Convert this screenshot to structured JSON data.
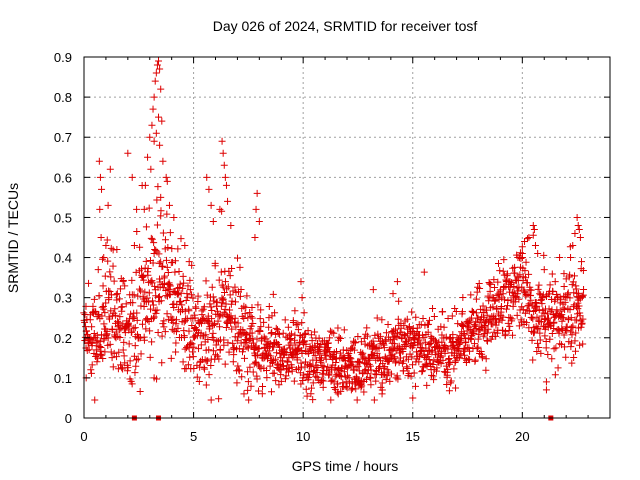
{
  "chart_data": {
    "type": "scatter",
    "title": "Day 026 of 2024, SRMTID for receiver tosf",
    "xlabel": "GPS time / hours",
    "ylabel": "SRMTID / TECUs",
    "xlim": [
      0,
      24
    ],
    "ylim": [
      0,
      0.9
    ],
    "x_ticks": [
      0,
      5,
      10,
      15,
      20
    ],
    "y_ticks": [
      0,
      0.1,
      0.2,
      0.3,
      0.4,
      0.5,
      0.6,
      0.7,
      0.8,
      0.9
    ],
    "x_tick_labels": [
      "0",
      "5",
      "10",
      "15",
      "20"
    ],
    "y_tick_labels": [
      "0",
      "0.1",
      "0.2",
      "0.3",
      "0.4",
      "0.5",
      "0.6",
      "0.7",
      "0.8",
      "0.9"
    ],
    "grid": true,
    "marker": "+",
    "color": "#dd0000",
    "baseline_markers_x": [
      2.3,
      3.4,
      21.3
    ],
    "trend": {
      "x": [
        0,
        0.5,
        1,
        1.5,
        2,
        2.5,
        3,
        3.5,
        4,
        4.5,
        5,
        5.5,
        6,
        6.5,
        7,
        7.5,
        8,
        8.5,
        9,
        9.5,
        10,
        10.5,
        11,
        11.5,
        12,
        12.5,
        13,
        13.5,
        14,
        14.5,
        15,
        15.5,
        16,
        16.5,
        17,
        17.5,
        18,
        18.5,
        19,
        19.5,
        20,
        20.5,
        21,
        21.5,
        22,
        22.5,
        22.8
      ],
      "y": [
        0.2,
        0.2,
        0.25,
        0.22,
        0.22,
        0.25,
        0.32,
        0.35,
        0.3,
        0.25,
        0.22,
        0.2,
        0.22,
        0.27,
        0.22,
        0.18,
        0.16,
        0.17,
        0.16,
        0.17,
        0.15,
        0.14,
        0.14,
        0.13,
        0.12,
        0.12,
        0.14,
        0.15,
        0.15,
        0.17,
        0.18,
        0.18,
        0.17,
        0.16,
        0.18,
        0.2,
        0.22,
        0.25,
        0.28,
        0.3,
        0.32,
        0.27,
        0.25,
        0.25,
        0.26,
        0.27,
        0.25
      ]
    },
    "spread": {
      "x": [
        0,
        1,
        2,
        3,
        4,
        5,
        6,
        7,
        8,
        9,
        10,
        11,
        12,
        13,
        14,
        15,
        16,
        17,
        18,
        19,
        20,
        21,
        22,
        22.8
      ],
      "y": [
        0.05,
        0.09,
        0.06,
        0.12,
        0.08,
        0.07,
        0.09,
        0.07,
        0.06,
        0.05,
        0.05,
        0.045,
        0.045,
        0.045,
        0.05,
        0.05,
        0.05,
        0.045,
        0.05,
        0.06,
        0.06,
        0.06,
        0.06,
        0.06
      ]
    },
    "spikes": [
      {
        "x": 0.7,
        "y": 0.64
      },
      {
        "x": 0.75,
        "y": 0.6
      },
      {
        "x": 0.8,
        "y": 0.57
      },
      {
        "x": 0.72,
        "y": 0.52
      },
      {
        "x": 0.78,
        "y": 0.45
      },
      {
        "x": 1.0,
        "y": 0.43
      },
      {
        "x": 0.9,
        "y": 0.4
      },
      {
        "x": 1.1,
        "y": 0.53
      },
      {
        "x": 1.2,
        "y": 0.62
      },
      {
        "x": 0.65,
        "y": 0.37
      },
      {
        "x": 2.0,
        "y": 0.66
      },
      {
        "x": 2.2,
        "y": 0.6
      },
      {
        "x": 2.4,
        "y": 0.52
      },
      {
        "x": 2.3,
        "y": 0.43
      },
      {
        "x": 2.9,
        "y": 0.65
      },
      {
        "x": 3.0,
        "y": 0.7
      },
      {
        "x": 3.1,
        "y": 0.73
      },
      {
        "x": 3.15,
        "y": 0.77
      },
      {
        "x": 3.2,
        "y": 0.8
      },
      {
        "x": 3.25,
        "y": 0.84
      },
      {
        "x": 3.3,
        "y": 0.86
      },
      {
        "x": 3.35,
        "y": 0.88
      },
      {
        "x": 3.4,
        "y": 0.89
      },
      {
        "x": 3.45,
        "y": 0.87
      },
      {
        "x": 3.5,
        "y": 0.82
      },
      {
        "x": 3.55,
        "y": 0.74
      },
      {
        "x": 3.6,
        "y": 0.64
      },
      {
        "x": 3.75,
        "y": 0.6
      },
      {
        "x": 3.8,
        "y": 0.59
      },
      {
        "x": 3.2,
        "y": 0.69
      },
      {
        "x": 3.3,
        "y": 0.71
      },
      {
        "x": 3.4,
        "y": 0.75
      },
      {
        "x": 3.05,
        "y": 0.62
      },
      {
        "x": 3.45,
        "y": 0.68
      },
      {
        "x": 3.9,
        "y": 0.53
      },
      {
        "x": 4.1,
        "y": 0.5
      },
      {
        "x": 2.8,
        "y": 0.58
      },
      {
        "x": 2.75,
        "y": 0.52
      },
      {
        "x": 3.5,
        "y": 0.55
      },
      {
        "x": 5.6,
        "y": 0.6
      },
      {
        "x": 5.8,
        "y": 0.53
      },
      {
        "x": 5.7,
        "y": 0.57
      },
      {
        "x": 5.9,
        "y": 0.49
      },
      {
        "x": 6.3,
        "y": 0.69
      },
      {
        "x": 6.35,
        "y": 0.66
      },
      {
        "x": 6.4,
        "y": 0.63
      },
      {
        "x": 6.5,
        "y": 0.58
      },
      {
        "x": 6.45,
        "y": 0.6
      },
      {
        "x": 6.55,
        "y": 0.54
      },
      {
        "x": 6.7,
        "y": 0.48
      },
      {
        "x": 6.2,
        "y": 0.52
      },
      {
        "x": 7.9,
        "y": 0.56
      },
      {
        "x": 7.85,
        "y": 0.52
      },
      {
        "x": 8.0,
        "y": 0.49
      },
      {
        "x": 7.8,
        "y": 0.45
      },
      {
        "x": 9.9,
        "y": 0.34
      },
      {
        "x": 9.95,
        "y": 0.3
      },
      {
        "x": 13.2,
        "y": 0.32
      },
      {
        "x": 14.3,
        "y": 0.34
      },
      {
        "x": 14.1,
        "y": 0.31
      },
      {
        "x": 15.0,
        "y": 0.05
      },
      {
        "x": 13.6,
        "y": 0.06
      },
      {
        "x": 11.6,
        "y": 0.06
      },
      {
        "x": 12.2,
        "y": 0.07
      },
      {
        "x": 7.3,
        "y": 0.06
      },
      {
        "x": 0.1,
        "y": 0.1
      },
      {
        "x": 3.2,
        "y": 0.1
      },
      {
        "x": 21.1,
        "y": 0.07
      },
      {
        "x": 21.1,
        "y": 0.09
      },
      {
        "x": 20.1,
        "y": 0.44
      },
      {
        "x": 20.3,
        "y": 0.45
      },
      {
        "x": 20.5,
        "y": 0.48
      },
      {
        "x": 20.55,
        "y": 0.47
      },
      {
        "x": 20.6,
        "y": 0.43
      },
      {
        "x": 20.0,
        "y": 0.41
      },
      {
        "x": 19.8,
        "y": 0.4
      },
      {
        "x": 20.7,
        "y": 0.41
      },
      {
        "x": 22.5,
        "y": 0.5
      },
      {
        "x": 22.55,
        "y": 0.48
      },
      {
        "x": 22.6,
        "y": 0.47
      },
      {
        "x": 22.4,
        "y": 0.46
      },
      {
        "x": 22.65,
        "y": 0.45
      },
      {
        "x": 22.3,
        "y": 0.43
      },
      {
        "x": 22.2,
        "y": 0.4
      },
      {
        "x": 22.7,
        "y": 0.39
      },
      {
        "x": 21.7,
        "y": 0.4
      },
      {
        "x": 21.0,
        "y": 0.37
      },
      {
        "x": 21.5,
        "y": 0.34
      },
      {
        "x": 21.9,
        "y": 0.36
      },
      {
        "x": 4.6,
        "y": 0.43
      },
      {
        "x": 4.8,
        "y": 0.39
      },
      {
        "x": 1.5,
        "y": 0.42
      }
    ]
  }
}
